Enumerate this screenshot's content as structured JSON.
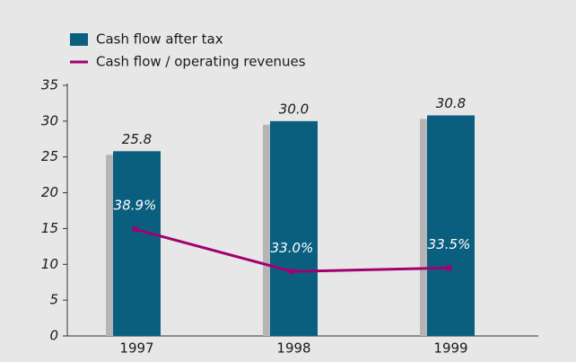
{
  "chart_data": {
    "type": "bar-line",
    "categories": [
      "1997",
      "1998",
      "1999"
    ],
    "series": [
      {
        "name": "Cash flow after tax",
        "type": "bar",
        "color": "#0b5f7e",
        "values": [
          25.8,
          30.0,
          30.8
        ],
        "value_labels": [
          "25.8",
          "30.0",
          "30.8"
        ]
      },
      {
        "name": "Cash flow / operating revenues",
        "type": "line",
        "axis": "y2",
        "color": "#a3006f",
        "values": [
          38.9,
          33.0,
          33.5
        ],
        "value_labels": [
          "38.9%",
          "33.0%",
          "33.5%"
        ]
      }
    ],
    "ylim": [
      0,
      35
    ],
    "yticks": [
      0,
      5,
      10,
      15,
      20,
      25,
      30,
      35
    ],
    "y2lim": [
      24,
      59
    ],
    "grid": false,
    "legend": "top-left"
  }
}
